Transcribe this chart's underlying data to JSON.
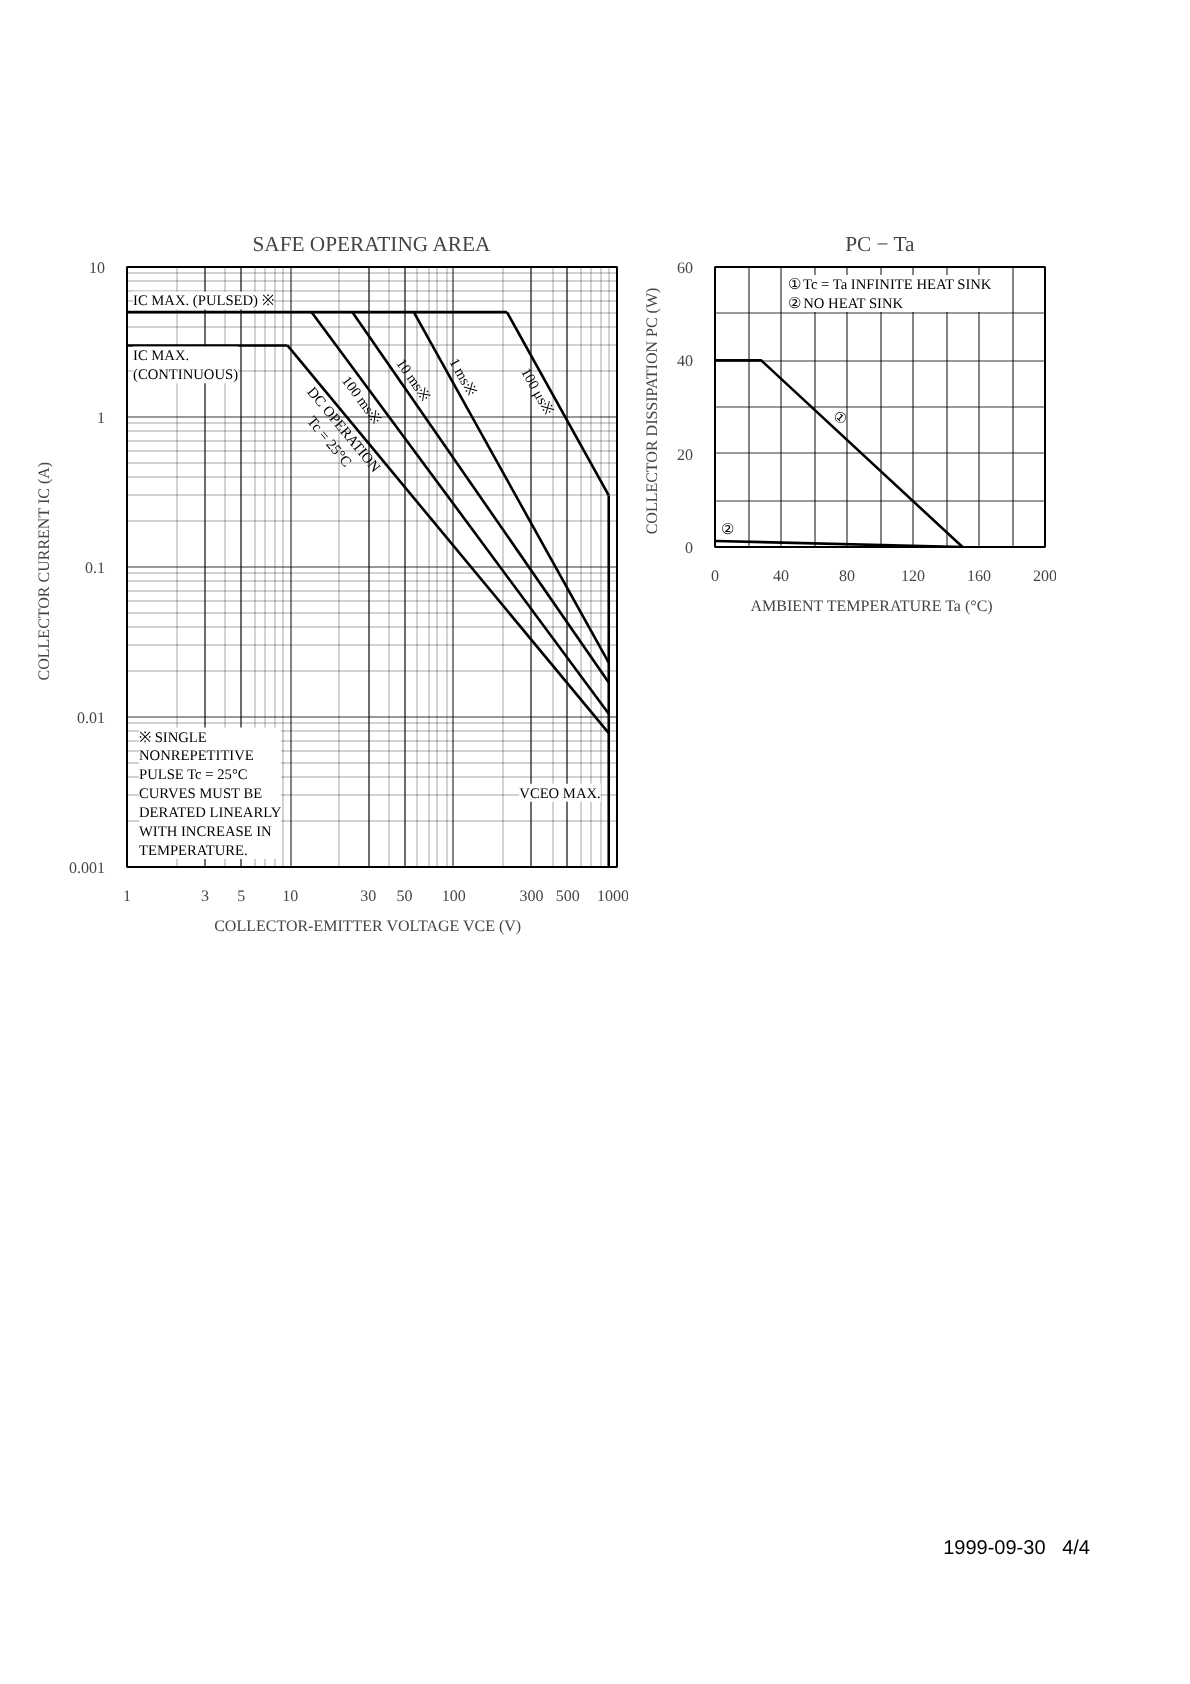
{
  "chart_data": [
    {
      "type": "line",
      "title": "SAFE OPERATING AREA",
      "xlabel": "COLLECTOR-EMITTER VOLTAGE  VCE  (V)",
      "ylabel": "COLLECTOR CURRENT  IC  (A)",
      "log": "xy",
      "grid": true,
      "legend": false,
      "xlim": [
        1,
        1000
      ],
      "xticks": [
        1,
        3,
        5,
        10,
        30,
        50,
        100,
        300,
        500,
        1000
      ],
      "ylim": [
        0.001,
        10
      ],
      "yticks": [
        0.001,
        0.01,
        0.1,
        1,
        10
      ],
      "series": [
        {
          "name": "IC MAX. (PULSED) ※",
          "color": "#000000",
          "x": [
            1,
            212
          ],
          "values": [
            5,
            5
          ]
        },
        {
          "name": "100 μs※",
          "color": "#000000",
          "x": [
            212,
            890
          ],
          "values": [
            5,
            0.3
          ]
        },
        {
          "name": "1 ms※",
          "color": "#000000",
          "x": [
            57,
            890
          ],
          "values": [
            5,
            0.023
          ]
        },
        {
          "name": "10 ms※",
          "color": "#000000",
          "x": [
            24,
            890
          ],
          "values": [
            5,
            0.017
          ]
        },
        {
          "name": "100 ms※",
          "color": "#000000",
          "x": [
            13.5,
            890
          ],
          "values": [
            5,
            0.0105
          ]
        },
        {
          "name": "IC MAX.\n(CONTINUOUS)",
          "color": "#000000",
          "x": [
            1,
            9.6
          ],
          "values": [
            3,
            3
          ]
        },
        {
          "name": "DC OPERATION\nTc = 25°C",
          "color": "#000000",
          "x": [
            9.6,
            890
          ],
          "values": [
            3,
            0.0078
          ]
        },
        {
          "name": "VCEO MAX.",
          "color": "#000000",
          "x": [
            890,
            890
          ],
          "values": [
            0.3,
            0.001
          ]
        }
      ],
      "annotations": [
        "※ SINGLE\n   NONREPETITIVE\n   PULSE   Tc = 25°C\nCURVES MUST BE\nDERATED LINEARLY\nWITH INCREASE IN\nTEMPERATURE."
      ]
    },
    {
      "type": "line",
      "title": "PC − Ta",
      "xlabel": "AMBIENT TEMPERATURE   Ta   (°C)",
      "ylabel": "COLLECTOR DISSIPATION  PC  (W)",
      "grid": true,
      "legend": false,
      "xlim": [
        0,
        200
      ],
      "xticks": [
        0,
        {
          "value": 20,
          "label": null
        },
        40,
        {
          "value": 60,
          "label": null
        },
        80,
        {
          "value": 100,
          "label": null
        },
        120,
        {
          "value": 140,
          "label": null
        },
        160,
        {
          "value": 180,
          "label": null
        },
        200
      ],
      "ylim": [
        0,
        60
      ],
      "yticks": [
        0,
        {
          "value": 10,
          "label": null
        },
        20,
        {
          "value": 30,
          "label": null
        },
        40,
        {
          "value": 50,
          "label": null
        },
        60
      ],
      "series": [
        {
          "name": "①",
          "color": "#000000",
          "x": [
            0,
            28,
            150
          ],
          "values": [
            40,
            40,
            0
          ]
        },
        {
          "name": "②",
          "color": "#000000",
          "x": [
            0,
            150
          ],
          "values": [
            1.3,
            0
          ]
        }
      ],
      "annotations": [
        "①  Tc = Ta   INFINITE HEAT SINK\n②  NO HEAT SINK",
        "1999-09-30   4/4"
      ]
    }
  ]
}
